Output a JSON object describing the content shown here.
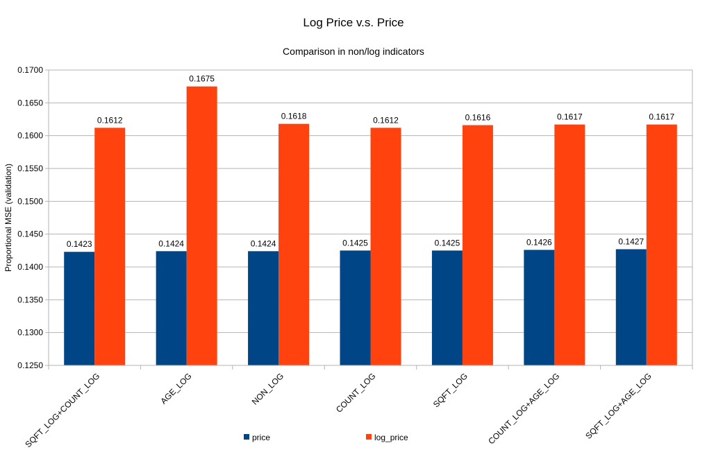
{
  "chart_data": {
    "type": "bar",
    "title": "Log Price v.s. Price",
    "subtitle": "Comparison in non/log indicators",
    "xlabel": "",
    "ylabel": "Proportional MSE (validation)",
    "ylim": [
      0.125,
      0.17
    ],
    "ytick_step": 0.005,
    "yticks": [
      "0.1250",
      "0.1300",
      "0.1350",
      "0.1400",
      "0.1450",
      "0.1500",
      "0.1550",
      "0.1600",
      "0.1650",
      "0.1700"
    ],
    "grid": true,
    "legend_position": "bottom",
    "categories": [
      "SQFT_LOG+COUNT_LOG",
      "AGE_LOG",
      "NON_LOG",
      "COUNT_LOG",
      "SQFT_LOG",
      "COUNT_LOG+AGE_LOG",
      "SQFT_LOG+AGE_LOG"
    ],
    "series": [
      {
        "name": "price",
        "color": "#004586",
        "values": [
          0.1423,
          0.1424,
          0.1424,
          0.1425,
          0.1425,
          0.1426,
          0.1427
        ],
        "labels": [
          "0.1423",
          "0.1424",
          "0.1424",
          "0.1425",
          "0.1425",
          "0.1426",
          "0.1427"
        ]
      },
      {
        "name": "log_price",
        "color": "#ff420e",
        "values": [
          0.1612,
          0.1675,
          0.1618,
          0.1612,
          0.1616,
          0.1617,
          0.1617
        ],
        "labels": [
          "0.1612",
          "0.1675",
          "0.1618",
          "0.1612",
          "0.1616",
          "0.1617",
          "0.1617"
        ]
      }
    ]
  }
}
